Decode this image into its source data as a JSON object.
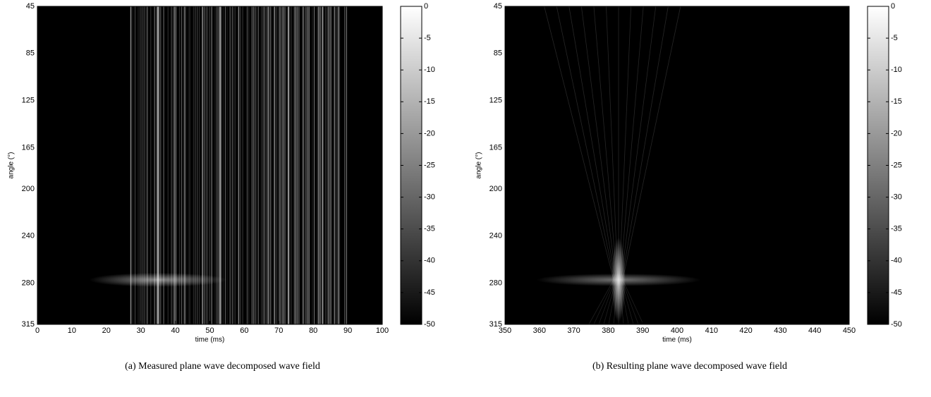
{
  "chart_data": [
    {
      "type": "heatmap",
      "caption": "(a) Measured plane wave decomposed wave field",
      "xlabel": "time (ms)",
      "ylabel": "angle (°)",
      "xlim": [
        0,
        100
      ],
      "xticks": [
        0,
        10,
        20,
        30,
        40,
        50,
        60,
        70,
        80,
        90,
        100
      ],
      "ylim": [
        45,
        315
      ],
      "yticks": [
        45,
        85,
        125,
        165,
        200,
        240,
        280,
        315
      ],
      "colormap": "gray",
      "clim": [
        -50,
        0
      ],
      "cticks": [
        0,
        -5,
        -10,
        -15,
        -20,
        -25,
        -30,
        -35,
        -40,
        -45,
        -50
      ]
    },
    {
      "type": "heatmap",
      "caption": "(b) Resulting plane wave decomposed wave field",
      "xlabel": "time (ms)",
      "ylabel": "angle (°)",
      "xlim": [
        350,
        450
      ],
      "xticks": [
        350,
        360,
        370,
        380,
        390,
        400,
        410,
        420,
        430,
        440,
        450
      ],
      "ylim": [
        45,
        315
      ],
      "yticks": [
        45,
        85,
        125,
        165,
        200,
        240,
        280,
        315
      ],
      "colormap": "gray",
      "clim": [
        -50,
        0
      ],
      "cticks": [
        0,
        -5,
        -10,
        -15,
        -20,
        -25,
        -30,
        -35,
        -40,
        -45,
        -50
      ]
    }
  ]
}
